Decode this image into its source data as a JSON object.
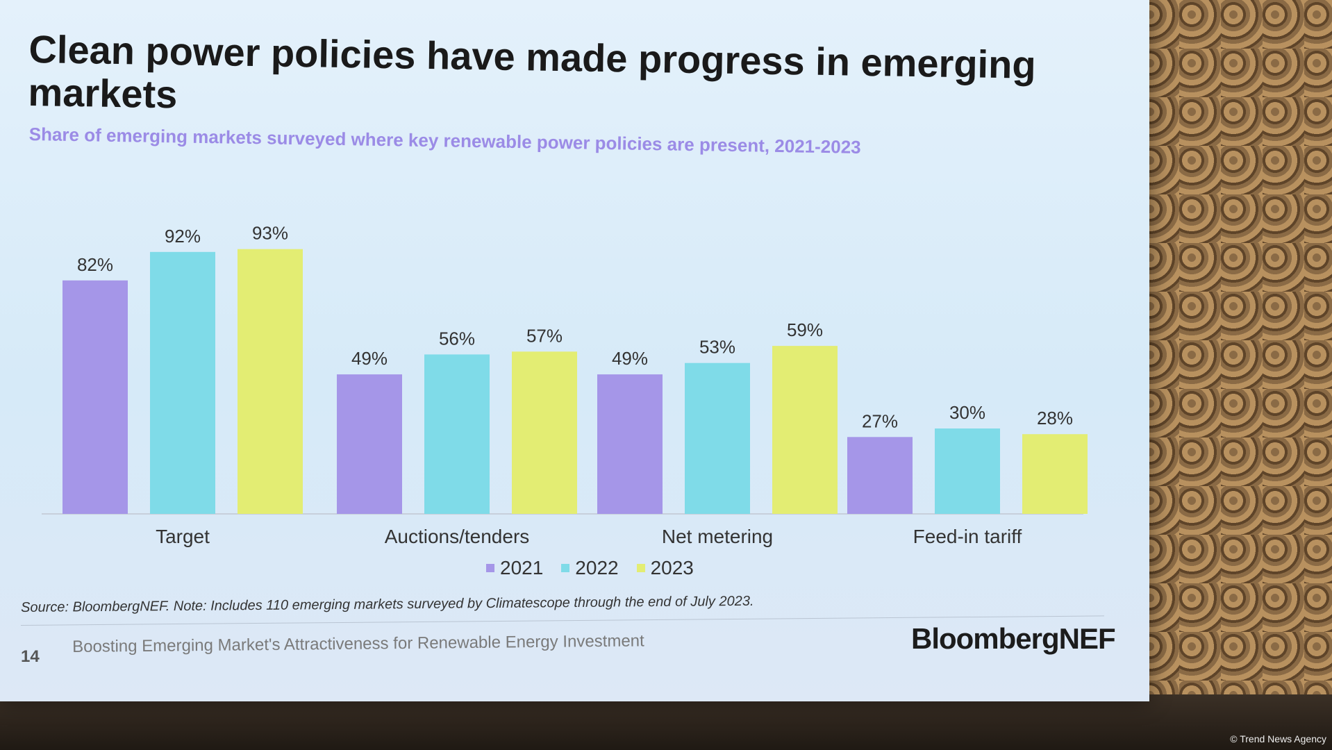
{
  "slide": {
    "title": "Clean power policies have made progress in emerging markets",
    "subtitle": "Share of emerging markets surveyed where key renewable power policies are present, 2021-2023",
    "source": "Source: BloombergNEF. Note: Includes 110 emerging markets surveyed by Climatescope through the end of July 2023.",
    "page_number": "14",
    "footer": "Boosting Emerging Market's Attractiveness for Renewable Energy Investment",
    "brand": "BloombergNEF"
  },
  "credit": "© Trend News Agency",
  "colors": {
    "2021": "#a596e8",
    "2022": "#7fdbe8",
    "2023": "#e3ed73",
    "axis": "#c7cfdb"
  },
  "chart_data": {
    "type": "bar",
    "title": "Clean power policies have made progress in emerging markets",
    "subtitle": "Share of emerging markets surveyed where key renewable power policies are present, 2021-2023",
    "categories": [
      "Target",
      "Auctions/tenders",
      "Net metering",
      "Feed-in tariff"
    ],
    "series": [
      {
        "name": "2021",
        "values": [
          82,
          49,
          49,
          27
        ],
        "labels": [
          "82%",
          "49%",
          "49%",
          "27%"
        ]
      },
      {
        "name": "2022",
        "values": [
          92,
          56,
          53,
          30
        ],
        "labels": [
          "92%",
          "56%",
          "53%",
          "30%"
        ]
      },
      {
        "name": "2023",
        "values": [
          93,
          57,
          59,
          28
        ],
        "labels": [
          "93%",
          "57%",
          "59%",
          "28%"
        ]
      }
    ],
    "ylim": [
      0,
      100
    ],
    "grid": false,
    "legend": "bottom-center"
  }
}
